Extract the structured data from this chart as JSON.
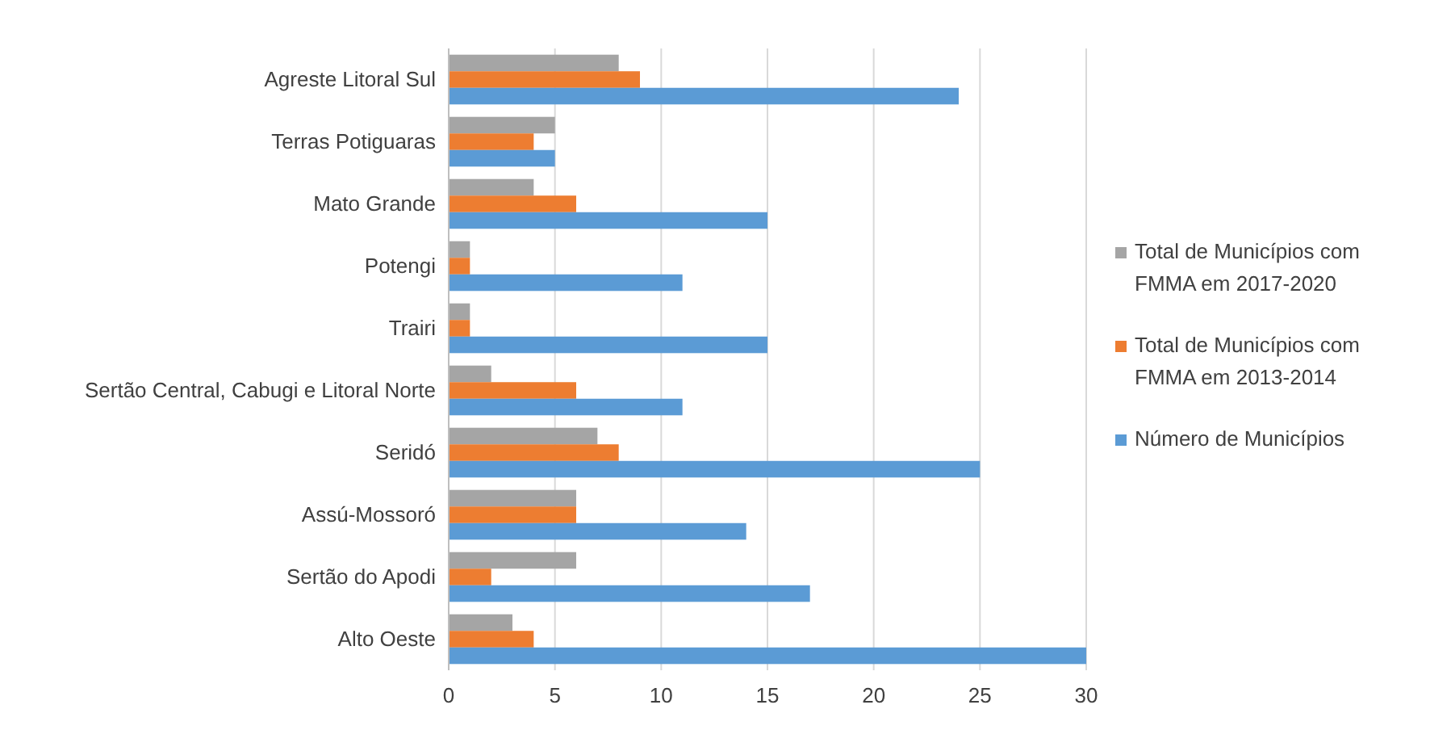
{
  "chart_data": {
    "type": "bar",
    "orientation": "horizontal",
    "categories": [
      "Agreste Litoral Sul",
      "Terras Potiguaras",
      "Mato Grande",
      "Potengi",
      "Trairi",
      "Sertão Central, Cabugi e Litoral Norte",
      "Seridó",
      "Assú-Mossoró",
      "Sertão do Apodi",
      "Alto Oeste"
    ],
    "series": [
      {
        "name": "Total de Municípios com FMMA em 2017-2020",
        "color": "#a5a5a5",
        "values": [
          8,
          5,
          4,
          1,
          1,
          2,
          7,
          6,
          6,
          3
        ]
      },
      {
        "name": "Total de Municípios com FMMA em 2013-2014",
        "color": "#ed7d31",
        "values": [
          9,
          4,
          6,
          1,
          1,
          6,
          8,
          6,
          2,
          4
        ]
      },
      {
        "name": "Número de Municípios",
        "color": "#5b9bd5",
        "values": [
          24,
          5,
          15,
          11,
          15,
          11,
          25,
          14,
          17,
          30
        ]
      }
    ],
    "xlim": [
      0,
      30
    ],
    "xticks": [
      0,
      5,
      10,
      15,
      20,
      25,
      30
    ],
    "grid": "x",
    "legend": "right"
  }
}
